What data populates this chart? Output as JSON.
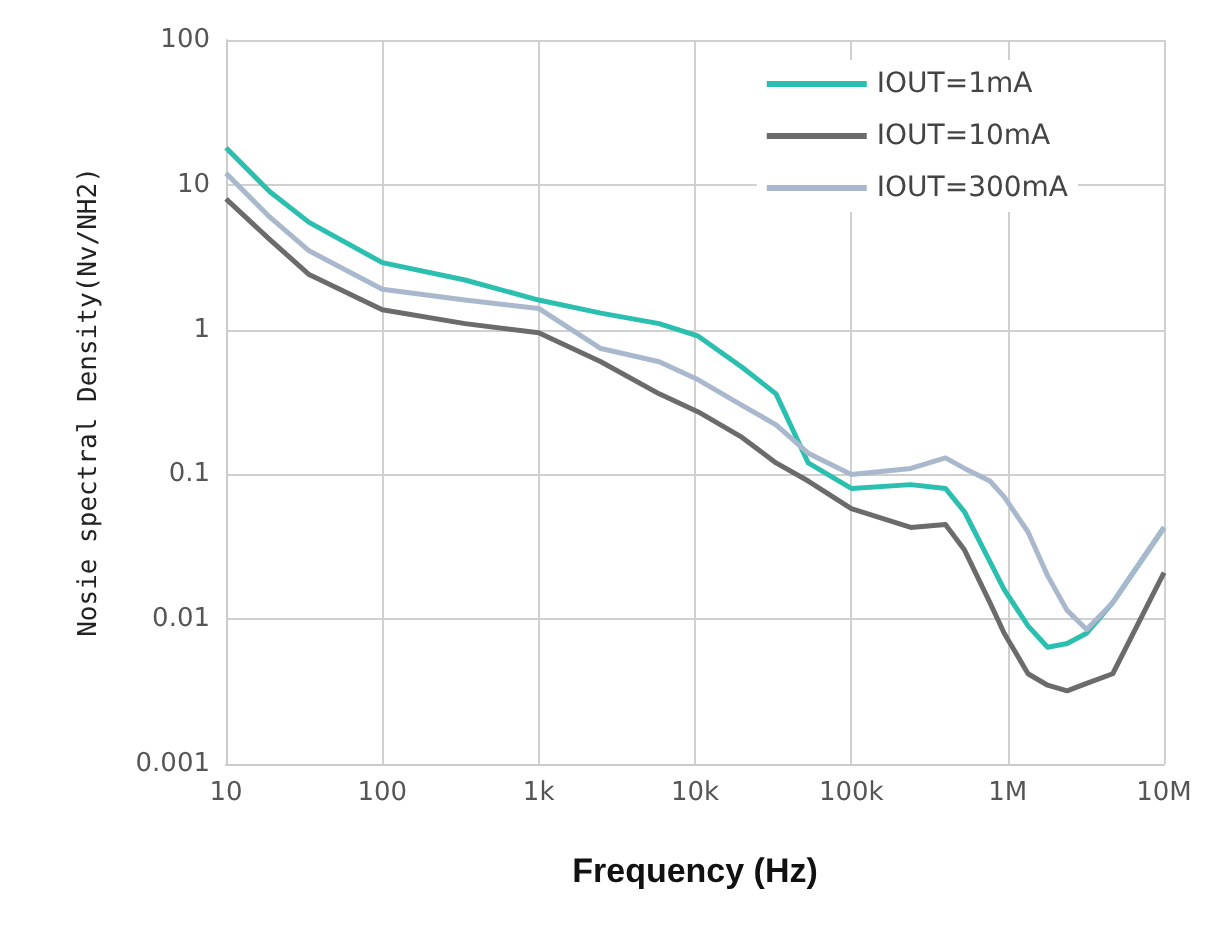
{
  "chart_data": {
    "type": "line",
    "xlabel": "Frequency (Hz)",
    "ylabel": "Nosie spectral Density(Nv/NH2)",
    "log": "xy",
    "grid": true,
    "legend": "top right",
    "line_style": "solid",
    "marker": "none",
    "xlim": [
      10,
      10000000
    ],
    "xticks": [
      10,
      100,
      {
        "value": 1000,
        "label": "1k"
      },
      {
        "value": 10000,
        "label": "10k"
      },
      {
        "value": 100000,
        "label": "100k"
      },
      {
        "value": 1000000,
        "label": "1M"
      },
      {
        "value": 10000000,
        "label": "10M"
      }
    ],
    "ylim": [
      0.001,
      100
    ],
    "yticks": [
      0.001,
      0.01,
      0.1,
      1,
      10,
      100
    ],
    "series": [
      {
        "name": "IOUT=1mA",
        "color": "#2bbfb0",
        "x": [
          10,
          19,
          34,
          100,
          338,
          1000,
          2500,
          5900,
          10500,
          20000,
          33000,
          53000,
          100000,
          240000,
          400000,
          530000,
          770000,
          950000,
          1350000,
          1800000,
          2400000,
          3200000,
          4700000,
          10000000
        ],
        "values": [
          18,
          9,
          5.5,
          2.9,
          2.2,
          1.6,
          1.3,
          1.1,
          0.9,
          0.55,
          0.36,
          0.12,
          0.08,
          0.085,
          0.08,
          0.055,
          0.025,
          0.016,
          0.009,
          0.0064,
          0.0068,
          0.008,
          0.013,
          0.043
        ]
      },
      {
        "name": "IOUT=10mA",
        "color": "#6b6b6b",
        "x": [
          10,
          19,
          34,
          100,
          338,
          1000,
          2500,
          5900,
          10500,
          20000,
          33000,
          53000,
          100000,
          240000,
          400000,
          530000,
          770000,
          950000,
          1350000,
          1800000,
          2400000,
          3200000,
          4700000,
          10000000
        ],
        "values": [
          8,
          4.2,
          2.4,
          1.37,
          1.1,
          0.95,
          0.6,
          0.36,
          0.27,
          0.18,
          0.12,
          0.09,
          0.058,
          0.043,
          0.045,
          0.03,
          0.013,
          0.008,
          0.0042,
          0.0035,
          0.0032,
          0.0036,
          0.0042,
          0.021
        ]
      },
      {
        "name": "IOUT=300mA",
        "color": "#a9b8cc",
        "x": [
          10,
          19,
          34,
          100,
          338,
          1000,
          2500,
          5900,
          10500,
          20000,
          33000,
          53000,
          100000,
          240000,
          400000,
          530000,
          770000,
          950000,
          1350000,
          1800000,
          2400000,
          3200000,
          4700000,
          10000000
        ],
        "values": [
          12,
          6,
          3.5,
          1.9,
          1.6,
          1.4,
          0.74,
          0.6,
          0.45,
          0.3,
          0.22,
          0.14,
          0.1,
          0.11,
          0.13,
          0.11,
          0.09,
          0.07,
          0.04,
          0.02,
          0.0115,
          0.0085,
          0.013,
          0.043
        ]
      }
    ]
  }
}
